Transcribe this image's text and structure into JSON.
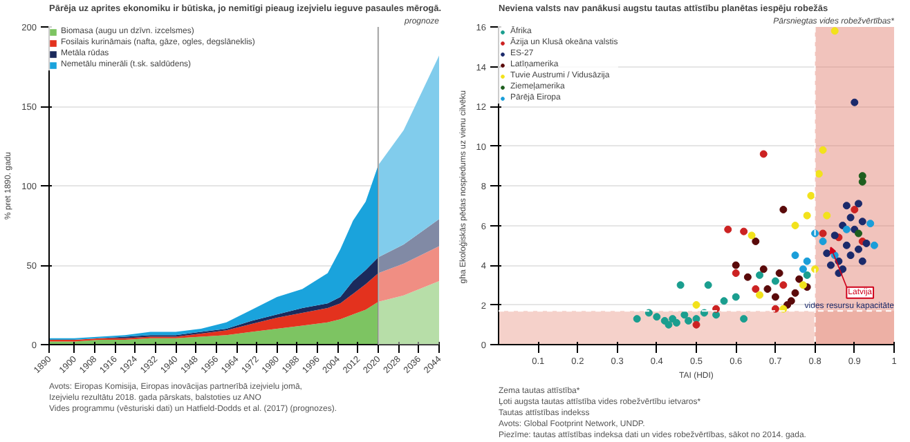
{
  "chart_data": [
    {
      "type": "area",
      "stacked": true,
      "title": "Pārēja uz aprites ekonomiku ir būtiska, jo nemitīgi pieaug izejvielu ieguve pasaules mērogā.",
      "ylabel": "% pret 1890. gadu",
      "x": [
        1890,
        1900,
        1910,
        1920,
        1930,
        1940,
        1950,
        1960,
        1970,
        1980,
        1990,
        2000,
        2005,
        2010,
        2015,
        2020,
        2030,
        2044
      ],
      "series": [
        {
          "name": "Biomasa (augu un dzīvn. izcelsmes)",
          "color": "#7dc462",
          "values": [
            2,
            2,
            3,
            3,
            4,
            4,
            5,
            6,
            8,
            10,
            12,
            14,
            16,
            19,
            22,
            27,
            31,
            40
          ]
        },
        {
          "name": "Fosilais kurināmais (nafta, gāze, ogles, degslāneklis)",
          "color": "#e3321e",
          "values": [
            1,
            1,
            1,
            1,
            1,
            1,
            2,
            3,
            5,
            7,
            8,
            9,
            10,
            13,
            16,
            18,
            20,
            22
          ]
        },
        {
          "name": "Metāla rūdas",
          "color": "#1b2a5c",
          "values": [
            0,
            0,
            0,
            1,
            1,
            1,
            1,
            1,
            2,
            2,
            3,
            3,
            4,
            8,
            9,
            10,
            12,
            17
          ]
        },
        {
          "name": "Nemetālu minerāli (t.sk. saldūdens)",
          "color": "#1aa3dc",
          "values": [
            1,
            1,
            1,
            1,
            2,
            2,
            2,
            4,
            7,
            11,
            12,
            19,
            30,
            38,
            43,
            58,
            72,
            103
          ]
        }
      ],
      "xlim": [
        1890,
        2044
      ],
      "ylim": [
        0,
        200
      ],
      "xticks": [
        1890,
        1900,
        1908,
        1916,
        1924,
        1932,
        1940,
        1948,
        1956,
        1964,
        1972,
        1980,
        1988,
        1996,
        2004,
        2012,
        2020,
        2028,
        2036,
        2044
      ],
      "yticks": [
        0,
        50,
        100,
        150,
        200
      ],
      "grid": "y",
      "legend": "top left",
      "bands": [
        {
          "axis": "x",
          "from": 2020,
          "to": 2044,
          "label": "prognoze",
          "color": "#ffffff"
        }
      ],
      "ref_lines": [
        {
          "axis": "x",
          "value": 2020,
          "color": "#888888",
          "line_style": "solid"
        }
      ],
      "annotations": [
        "Avots: Eiropas Komisija, Eiropas inovācijas partnerībā izejvielu jomā,",
        "Izejvielu rezultātu 2018. gada pārskats, balstoties uz ANO",
        "Vides programmu (vēsturiski dati) un Hatfield-Dodds et al. (2017) (prognozes)."
      ]
    },
    {
      "type": "scatter",
      "title": "Neviena valsts nav panākusi augstu tautas attīstību planētas iespēju robežās",
      "xlabel": "TAI (HDI)",
      "ylabel": "gha  Ekoloģiskās pēdas nospiedums uz vienu cilvēku",
      "marker": "circle",
      "series": [
        {
          "name": "Āfrika",
          "color": "#1a9e8f",
          "x": [
            0.35,
            0.38,
            0.4,
            0.42,
            0.43,
            0.44,
            0.45,
            0.46,
            0.47,
            0.48,
            0.5,
            0.52,
            0.53,
            0.55,
            0.57,
            0.6,
            0.62,
            0.66,
            0.7,
            0.78
          ],
          "values": [
            1.3,
            1.6,
            1.4,
            1.2,
            1.0,
            1.3,
            1.1,
            3.0,
            1.5,
            1.2,
            1.3,
            1.6,
            3.0,
            1.5,
            2.2,
            2.4,
            1.3,
            3.5,
            3.2,
            3.5
          ]
        },
        {
          "name": "Āzija un Klusā okeāna valstis",
          "color": "#cc2222",
          "x": [
            0.5,
            0.55,
            0.58,
            0.6,
            0.62,
            0.65,
            0.67,
            0.7,
            0.72,
            0.82,
            0.86,
            0.9,
            0.92
          ],
          "values": [
            1.0,
            1.8,
            5.8,
            3.6,
            5.7,
            2.8,
            9.6,
            1.8,
            3.0,
            5.6,
            5.4,
            6.8,
            5.2
          ]
        },
        {
          "name": "ES-27",
          "color": "#1b2a6b",
          "x": [
            0.83,
            0.84,
            0.85,
            0.86,
            0.86,
            0.87,
            0.87,
            0.88,
            0.88,
            0.89,
            0.89,
            0.9,
            0.9,
            0.91,
            0.91,
            0.92,
            0.92,
            0.93
          ],
          "values": [
            4.6,
            4.0,
            5.5,
            4.2,
            3.6,
            6.0,
            3.8,
            5.0,
            7.0,
            4.5,
            6.4,
            5.8,
            12.2,
            4.8,
            7.1,
            6.2,
            4.2,
            5.1
          ]
        },
        {
          "name": "Latīņamerika",
          "color": "#5a0a0a",
          "x": [
            0.6,
            0.63,
            0.65,
            0.67,
            0.68,
            0.7,
            0.71,
            0.72,
            0.73,
            0.74,
            0.75,
            0.76,
            0.78
          ],
          "values": [
            4.0,
            3.4,
            5.2,
            3.8,
            2.8,
            2.4,
            3.6,
            6.8,
            2.0,
            2.2,
            2.6,
            3.3,
            2.9
          ]
        },
        {
          "name": "Tuvie Austrumi / Vidusāzija",
          "color": "#f2e21b",
          "x": [
            0.5,
            0.64,
            0.66,
            0.72,
            0.75,
            0.77,
            0.78,
            0.79,
            0.8,
            0.81,
            0.82,
            0.83,
            0.85
          ],
          "values": [
            2.0,
            5.5,
            2.5,
            1.8,
            6.0,
            3.0,
            6.5,
            7.5,
            3.8,
            8.6,
            9.8,
            6.5,
            15.8
          ]
        },
        {
          "name": "Ziemeļamerika",
          "color": "#1e5e1e",
          "x": [
            0.91,
            0.92,
            0.92
          ],
          "values": [
            5.6,
            8.2,
            8.5
          ]
        },
        {
          "name": "Pārējā Eiropa",
          "color": "#1a9ed9",
          "x": [
            0.75,
            0.77,
            0.78,
            0.8,
            0.82,
            0.85,
            0.88,
            0.94,
            0.95
          ],
          "values": [
            4.5,
            3.8,
            4.2,
            5.6,
            5.2,
            4.5,
            5.8,
            6.1,
            5.0
          ]
        }
      ],
      "xlim": [
        0,
        1
      ],
      "ylim": [
        0,
        16
      ],
      "xticks": [
        0.1,
        0.2,
        0.3,
        0.4,
        0.5,
        0.6,
        0.7,
        0.8,
        0.9,
        1
      ],
      "yticks": [
        0,
        2,
        4,
        6,
        8,
        10,
        12,
        14,
        16
      ],
      "grid": "y",
      "legend": "top left",
      "bands": [
        {
          "axis": "x",
          "from": 0.8,
          "to": 1,
          "label": "Pārsniegtas vides robežvērtības*",
          "color": "#e07a6a"
        },
        {
          "axis": "y",
          "from": 0,
          "to": 1.7,
          "color": "#e89a8a"
        }
      ],
      "ref_lines": [
        {
          "axis": "y",
          "value": 1.7,
          "label": "vides resursu kapacitāte",
          "color": "#ffffff",
          "line_style": "dashed"
        },
        {
          "axis": "x",
          "value": 0.8,
          "color": "#ffffff",
          "line_style": "dashed"
        }
      ],
      "annotations": [
        {
          "text": "Latvija",
          "x": 0.84,
          "y": 4.9
        },
        "Zema tautas attīstība*",
        "Ļoti augsta tautas attīstība vides robežvērtību ietvaros*",
        "Tautas attīstības indekss",
        "Avots: Global Footprint Network, UNDP.",
        "Piezīme: tautas attīstības indeksa dati un vides robežvērtības, sākot no 2014. gada."
      ]
    }
  ]
}
